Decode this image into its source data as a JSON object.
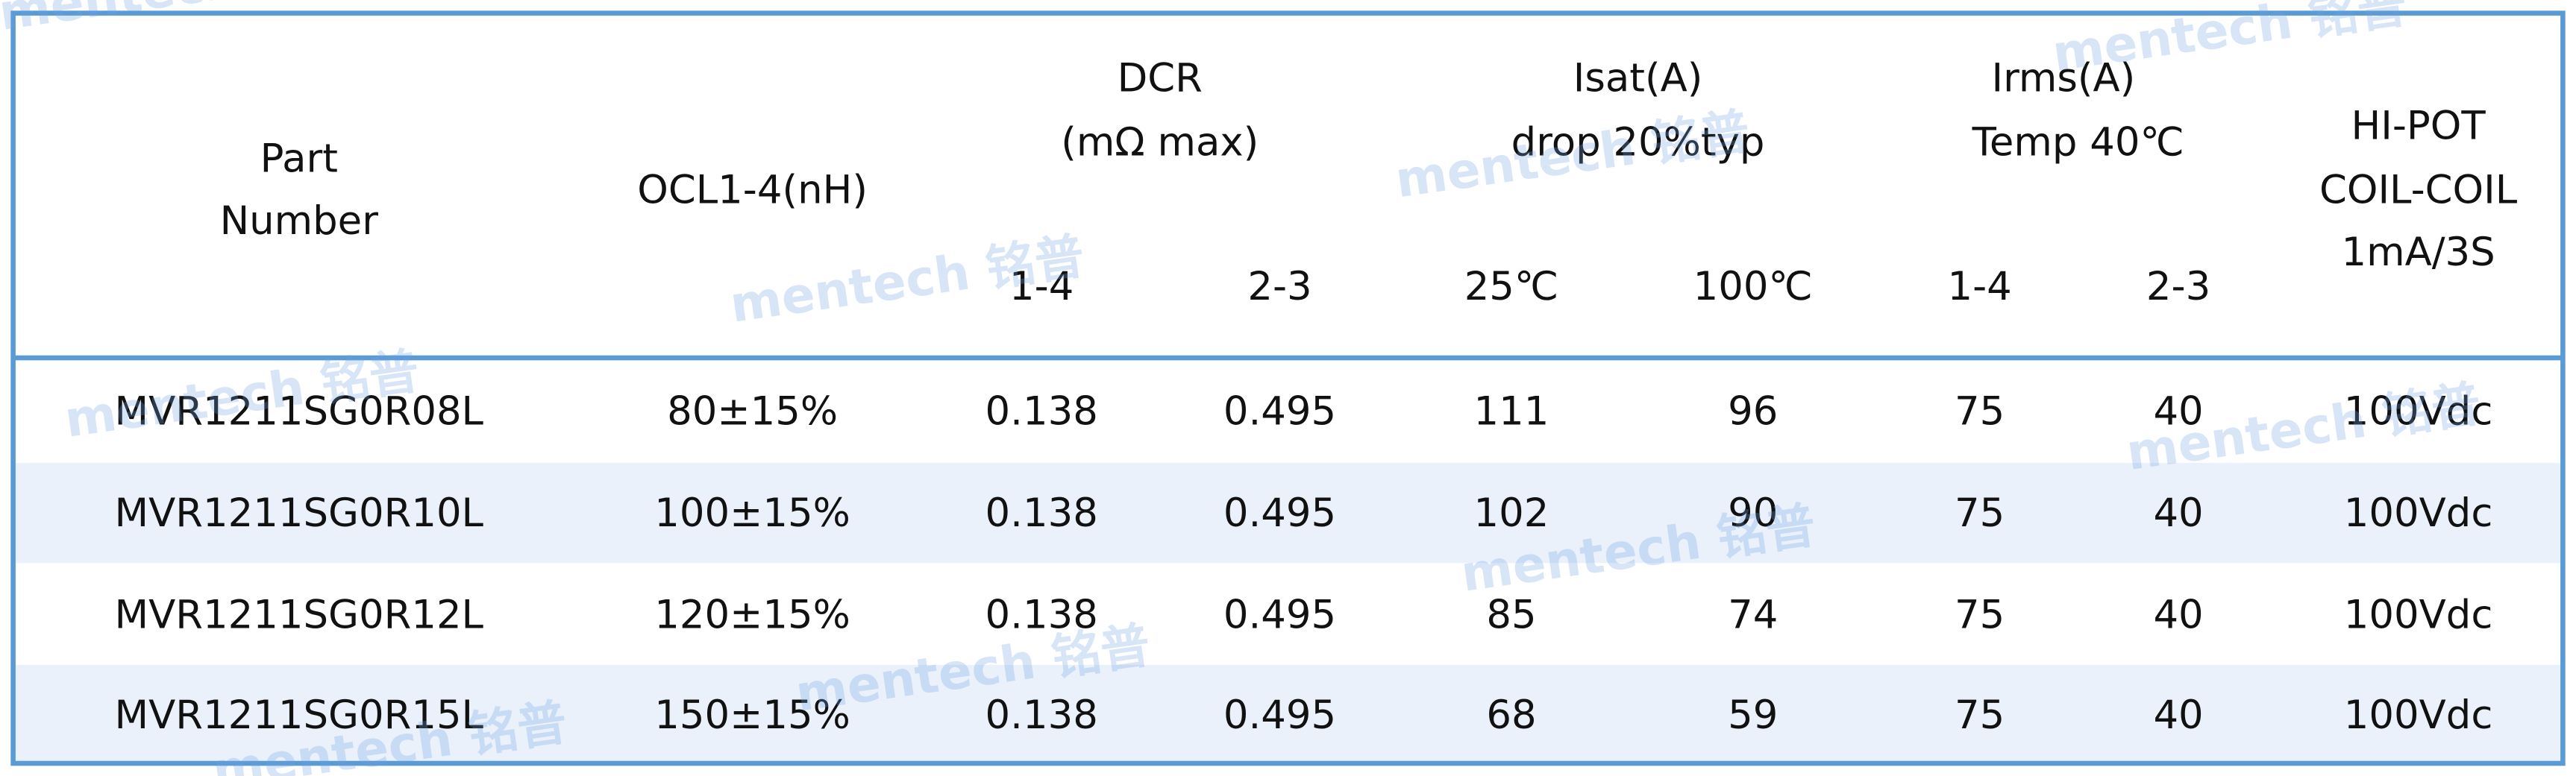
{
  "table": {
    "header": {
      "part_number": [
        "Part",
        "Number"
      ],
      "ocl": "OCL1-4(nH)",
      "dcr": [
        "DCR",
        "(mΩ max)"
      ],
      "isat": [
        "Isat(A)",
        "drop 20%typ"
      ],
      "irms": [
        "Irms(A)",
        "Temp 40℃"
      ],
      "hipot": [
        "HI-POT",
        "COIL-COIL",
        "1mA/3S"
      ],
      "sub": [
        "1-4",
        "2-3",
        "25℃",
        "100℃",
        "1-4",
        "2-3"
      ]
    },
    "rows": [
      [
        "MVR1211SG0R08L",
        "80±15%",
        "0.138",
        "0.495",
        "111",
        "96",
        "75",
        "40",
        "100Vdc"
      ],
      [
        "MVR1211SG0R10L",
        "100±15%",
        "0.138",
        "0.495",
        "102",
        "90",
        "75",
        "40",
        "100Vdc"
      ],
      [
        "MVR1211SG0R12L",
        "120±15%",
        "0.138",
        "0.495",
        "85",
        "74",
        "75",
        "40",
        "100Vdc"
      ],
      [
        "MVR1211SG0R15L",
        "150±15%",
        "0.138",
        "0.495",
        "68",
        "59",
        "75",
        "40",
        "100Vdc"
      ]
    ]
  },
  "watermark": "mentech 铭普"
}
